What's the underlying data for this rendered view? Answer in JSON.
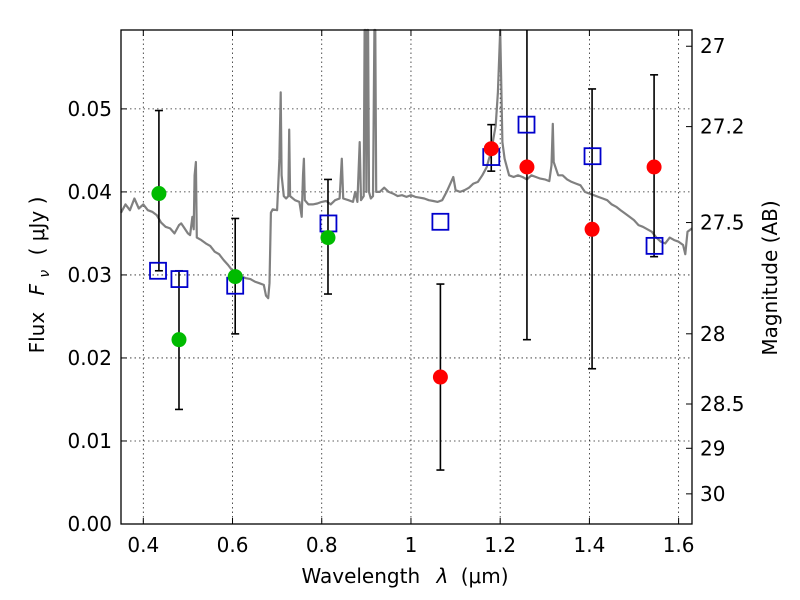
{
  "chart_data": {
    "type": "scatter",
    "xlabel_main": "Wavelength",
    "xlabel_symbol": "λ",
    "xlabel_unit": "(μm)",
    "ylabel_main": "Flux",
    "ylabel_symbol": "F",
    "ylabel_subscript": "ν",
    "ylabel_unit": "( μJy )",
    "y2label": "Magnitude (AB)",
    "xlim": [
      0.35,
      1.63
    ],
    "ylim": [
      0.0,
      0.0595
    ],
    "x_ticks": [
      0.4,
      0.6,
      0.8,
      1.0,
      1.2,
      1.4,
      1.6
    ],
    "x_tick_labels": [
      "0.4",
      "0.6",
      "0.8",
      "1",
      "1.2",
      "1.4",
      "1.6"
    ],
    "y_ticks": [
      0.0,
      0.01,
      0.02,
      0.03,
      0.04,
      0.05
    ],
    "y_tick_labels": [
      "0.00",
      "0.01",
      "0.02",
      "0.03",
      "0.04",
      "0.05"
    ],
    "mag_ticks": [
      27,
      27.2,
      27.5,
      28,
      28.5,
      29,
      30
    ],
    "mag_tick_labels": [
      "27",
      "27.2",
      "27.5",
      "28",
      "28.5",
      "29",
      "30"
    ],
    "grid": true,
    "colors": {
      "green": "#00bb00",
      "red": "#ff0000",
      "model_box": "#0000cc",
      "sed": "#808080",
      "errorbar": "#000000"
    },
    "green_points": [
      {
        "x": 0.435,
        "y": 0.0398,
        "lo": 0.0305,
        "hi": 0.0498
      },
      {
        "x": 0.48,
        "y": 0.0222,
        "lo": 0.0138,
        "hi": 0.0305
      },
      {
        "x": 0.606,
        "y": 0.0298,
        "lo": 0.0229,
        "hi": 0.0368
      },
      {
        "x": 0.814,
        "y": 0.0345,
        "lo": 0.0277,
        "hi": 0.0415
      }
    ],
    "red_points": [
      {
        "x": 1.066,
        "y": 0.0177,
        "lo": 0.0065,
        "hi": 0.0289
      },
      {
        "x": 1.18,
        "y": 0.0452,
        "lo": 0.0425,
        "hi": 0.0481
      },
      {
        "x": 1.26,
        "y": 0.043,
        "lo": 0.0222,
        "hi": 0.06
      },
      {
        "x": 1.406,
        "y": 0.0355,
        "lo": 0.0187,
        "hi": 0.0524
      },
      {
        "x": 1.545,
        "y": 0.043,
        "lo": 0.0322,
        "hi": 0.0541
      }
    ],
    "model_points": [
      {
        "x": 0.433,
        "y": 0.0305
      },
      {
        "x": 0.481,
        "y": 0.0295
      },
      {
        "x": 0.606,
        "y": 0.0287
      },
      {
        "x": 0.815,
        "y": 0.0362
      },
      {
        "x": 1.066,
        "y": 0.0364
      },
      {
        "x": 1.18,
        "y": 0.0442
      },
      {
        "x": 1.259,
        "y": 0.0481
      },
      {
        "x": 1.407,
        "y": 0.0443
      },
      {
        "x": 1.546,
        "y": 0.0335
      }
    ],
    "sed_curve": [
      [
        0.35,
        0.0375
      ],
      [
        0.36,
        0.0385
      ],
      [
        0.37,
        0.0378
      ],
      [
        0.38,
        0.0392
      ],
      [
        0.39,
        0.038
      ],
      [
        0.4,
        0.0385
      ],
      [
        0.41,
        0.0378
      ],
      [
        0.42,
        0.0376
      ],
      [
        0.43,
        0.0372
      ],
      [
        0.44,
        0.0363
      ],
      [
        0.45,
        0.0358
      ],
      [
        0.46,
        0.0356
      ],
      [
        0.47,
        0.035
      ],
      [
        0.48,
        0.036
      ],
      [
        0.485,
        0.0362
      ],
      [
        0.49,
        0.0358
      ],
      [
        0.5,
        0.035
      ],
      [
        0.505,
        0.0348
      ],
      [
        0.51,
        0.037
      ],
      [
        0.513,
        0.0355
      ],
      [
        0.515,
        0.042
      ],
      [
        0.518,
        0.0436
      ],
      [
        0.52,
        0.0345
      ],
      [
        0.53,
        0.0342
      ],
      [
        0.54,
        0.0338
      ],
      [
        0.55,
        0.0335
      ],
      [
        0.56,
        0.0328
      ],
      [
        0.57,
        0.0325
      ],
      [
        0.58,
        0.0318
      ],
      [
        0.59,
        0.0312
      ],
      [
        0.6,
        0.0305
      ],
      [
        0.61,
        0.03
      ],
      [
        0.62,
        0.0298
      ],
      [
        0.63,
        0.0296
      ],
      [
        0.64,
        0.0295
      ],
      [
        0.65,
        0.0292
      ],
      [
        0.66,
        0.029
      ],
      [
        0.67,
        0.0288
      ],
      [
        0.675,
        0.0275
      ],
      [
        0.68,
        0.0272
      ],
      [
        0.683,
        0.029
      ],
      [
        0.686,
        0.0375
      ],
      [
        0.69,
        0.0379
      ],
      [
        0.7,
        0.0378
      ],
      [
        0.705,
        0.044
      ],
      [
        0.708,
        0.052
      ],
      [
        0.71,
        0.042
      ],
      [
        0.715,
        0.0395
      ],
      [
        0.72,
        0.0392
      ],
      [
        0.725,
        0.0395
      ],
      [
        0.727,
        0.0475
      ],
      [
        0.729,
        0.0395
      ],
      [
        0.74,
        0.039
      ],
      [
        0.75,
        0.0388
      ],
      [
        0.755,
        0.037
      ],
      [
        0.758,
        0.042
      ],
      [
        0.76,
        0.044
      ],
      [
        0.762,
        0.039
      ],
      [
        0.77,
        0.0385
      ],
      [
        0.78,
        0.0385
      ],
      [
        0.79,
        0.0386
      ],
      [
        0.8,
        0.0388
      ],
      [
        0.81,
        0.0389
      ],
      [
        0.82,
        0.0385
      ],
      [
        0.83,
        0.039
      ],
      [
        0.84,
        0.0392
      ],
      [
        0.845,
        0.044
      ],
      [
        0.848,
        0.0392
      ],
      [
        0.86,
        0.039
      ],
      [
        0.87,
        0.0388
      ],
      [
        0.875,
        0.04
      ],
      [
        0.88,
        0.0388
      ],
      [
        0.885,
        0.046
      ],
      [
        0.888,
        0.039
      ],
      [
        0.894,
        0.0395
      ],
      [
        0.896,
        0.06
      ],
      [
        0.898,
        0.06
      ],
      [
        0.9,
        0.04
      ],
      [
        0.902,
        0.06
      ],
      [
        0.904,
        0.06
      ],
      [
        0.906,
        0.04
      ],
      [
        0.91,
        0.0392
      ],
      [
        0.915,
        0.0395
      ],
      [
        0.918,
        0.06
      ],
      [
        0.92,
        0.06
      ],
      [
        0.922,
        0.04
      ],
      [
        0.93,
        0.04
      ],
      [
        0.94,
        0.0405
      ],
      [
        0.95,
        0.04
      ],
      [
        0.96,
        0.0398
      ],
      [
        0.97,
        0.0395
      ],
      [
        0.98,
        0.0396
      ],
      [
        0.99,
        0.0394
      ],
      [
        1.0,
        0.0396
      ],
      [
        1.01,
        0.0394
      ],
      [
        1.02,
        0.0393
      ],
      [
        1.03,
        0.0392
      ],
      [
        1.04,
        0.039
      ],
      [
        1.05,
        0.0389
      ],
      [
        1.06,
        0.0388
      ],
      [
        1.07,
        0.039
      ],
      [
        1.08,
        0.04
      ],
      [
        1.09,
        0.0412
      ],
      [
        1.095,
        0.0418
      ],
      [
        1.1,
        0.0402
      ],
      [
        1.11,
        0.04
      ],
      [
        1.12,
        0.0402
      ],
      [
        1.13,
        0.0405
      ],
      [
        1.14,
        0.041
      ],
      [
        1.15,
        0.0412
      ],
      [
        1.16,
        0.042
      ],
      [
        1.17,
        0.043
      ],
      [
        1.175,
        0.044
      ],
      [
        1.18,
        0.0448
      ],
      [
        1.185,
        0.0465
      ],
      [
        1.19,
        0.048
      ],
      [
        1.195,
        0.052
      ],
      [
        1.2,
        0.06
      ],
      [
        1.205,
        0.046
      ],
      [
        1.21,
        0.044
      ],
      [
        1.22,
        0.042
      ],
      [
        1.23,
        0.0418
      ],
      [
        1.24,
        0.042
      ],
      [
        1.25,
        0.0418
      ],
      [
        1.26,
        0.0415
      ],
      [
        1.27,
        0.042
      ],
      [
        1.28,
        0.0418
      ],
      [
        1.29,
        0.0416
      ],
      [
        1.3,
        0.0415
      ],
      [
        1.31,
        0.0413
      ],
      [
        1.315,
        0.0432
      ],
      [
        1.318,
        0.0482
      ],
      [
        1.32,
        0.0436
      ],
      [
        1.33,
        0.042
      ],
      [
        1.34,
        0.042
      ],
      [
        1.35,
        0.0415
      ],
      [
        1.36,
        0.0412
      ],
      [
        1.37,
        0.041
      ],
      [
        1.38,
        0.0408
      ],
      [
        1.39,
        0.04
      ],
      [
        1.4,
        0.0398
      ],
      [
        1.41,
        0.0396
      ],
      [
        1.42,
        0.0394
      ],
      [
        1.43,
        0.0392
      ],
      [
        1.44,
        0.039
      ],
      [
        1.45,
        0.0385
      ],
      [
        1.46,
        0.0382
      ],
      [
        1.47,
        0.0378
      ],
      [
        1.48,
        0.0374
      ],
      [
        1.49,
        0.037
      ],
      [
        1.5,
        0.0366
      ],
      [
        1.51,
        0.036
      ],
      [
        1.52,
        0.0358
      ],
      [
        1.53,
        0.0355
      ],
      [
        1.54,
        0.0352
      ],
      [
        1.55,
        0.0345
      ],
      [
        1.56,
        0.034
      ],
      [
        1.57,
        0.0338
      ],
      [
        1.58,
        0.0345
      ],
      [
        1.59,
        0.0342
      ],
      [
        1.6,
        0.034
      ],
      [
        1.61,
        0.0336
      ],
      [
        1.615,
        0.0325
      ],
      [
        1.62,
        0.0352
      ],
      [
        1.63,
        0.0356
      ]
    ]
  }
}
